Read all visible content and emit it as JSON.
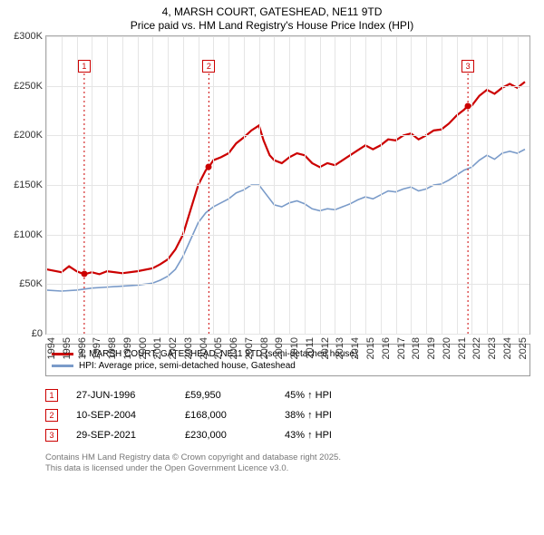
{
  "header": {
    "title": "4, MARSH COURT, GATESHEAD, NE11 9TD",
    "subtitle": "Price paid vs. HM Land Registry's House Price Index (HPI)"
  },
  "chart": {
    "x_min": 1994,
    "x_max": 2025.8,
    "y_min": 0,
    "y_max": 300000,
    "y_ticks": [
      0,
      50000,
      100000,
      150000,
      200000,
      250000,
      300000
    ],
    "y_tick_labels": [
      "£0",
      "£50K",
      "£100K",
      "£150K",
      "£200K",
      "£250K",
      "£300K"
    ],
    "x_ticks": [
      1994,
      1995,
      1996,
      1997,
      1998,
      1999,
      2000,
      2001,
      2002,
      2003,
      2004,
      2005,
      2006,
      2007,
      2008,
      2009,
      2010,
      2011,
      2012,
      2013,
      2014,
      2015,
      2016,
      2017,
      2018,
      2019,
      2020,
      2021,
      2022,
      2023,
      2024,
      2025
    ],
    "grid_color": "#e5e5e5",
    "background_color": "#ffffff",
    "series_main": {
      "color": "#cc0000",
      "width": 2.2,
      "data": [
        [
          1994.0,
          65000
        ],
        [
          1995.0,
          62000
        ],
        [
          1995.5,
          68000
        ],
        [
          1996.0,
          63000
        ],
        [
          1996.5,
          59950
        ],
        [
          1997.0,
          62000
        ],
        [
          1997.5,
          60000
        ],
        [
          1998.0,
          63000
        ],
        [
          1999.0,
          61000
        ],
        [
          2000.0,
          63000
        ],
        [
          2001.0,
          66000
        ],
        [
          2001.5,
          70000
        ],
        [
          2002.0,
          75000
        ],
        [
          2002.5,
          85000
        ],
        [
          2003.0,
          100000
        ],
        [
          2003.5,
          125000
        ],
        [
          2004.0,
          150000
        ],
        [
          2004.5,
          165000
        ],
        [
          2004.7,
          168000
        ],
        [
          2005.0,
          175000
        ],
        [
          2005.5,
          178000
        ],
        [
          2006.0,
          182000
        ],
        [
          2006.5,
          192000
        ],
        [
          2007.0,
          198000
        ],
        [
          2007.5,
          205000
        ],
        [
          2008.0,
          210000
        ],
        [
          2008.3,
          195000
        ],
        [
          2008.7,
          180000
        ],
        [
          2009.0,
          175000
        ],
        [
          2009.5,
          172000
        ],
        [
          2010.0,
          178000
        ],
        [
          2010.5,
          182000
        ],
        [
          2011.0,
          180000
        ],
        [
          2011.5,
          172000
        ],
        [
          2012.0,
          168000
        ],
        [
          2012.5,
          172000
        ],
        [
          2013.0,
          170000
        ],
        [
          2013.5,
          175000
        ],
        [
          2014.0,
          180000
        ],
        [
          2014.5,
          185000
        ],
        [
          2015.0,
          190000
        ],
        [
          2015.5,
          186000
        ],
        [
          2016.0,
          190000
        ],
        [
          2016.5,
          196000
        ],
        [
          2017.0,
          195000
        ],
        [
          2017.5,
          200000
        ],
        [
          2018.0,
          202000
        ],
        [
          2018.5,
          196000
        ],
        [
          2019.0,
          200000
        ],
        [
          2019.5,
          205000
        ],
        [
          2020.0,
          206000
        ],
        [
          2020.5,
          212000
        ],
        [
          2021.0,
          220000
        ],
        [
          2021.5,
          226000
        ],
        [
          2021.75,
          230000
        ],
        [
          2022.0,
          230000
        ],
        [
          2022.5,
          240000
        ],
        [
          2023.0,
          246000
        ],
        [
          2023.5,
          242000
        ],
        [
          2024.0,
          248000
        ],
        [
          2024.5,
          252000
        ],
        [
          2025.0,
          248000
        ],
        [
          2025.5,
          254000
        ]
      ]
    },
    "series_hpi": {
      "color": "#7a9bc9",
      "width": 1.6,
      "data": [
        [
          1994.0,
          44000
        ],
        [
          1995.0,
          43000
        ],
        [
          1996.0,
          44000
        ],
        [
          1997.0,
          46000
        ],
        [
          1998.0,
          47000
        ],
        [
          1999.0,
          48000
        ],
        [
          2000.0,
          49000
        ],
        [
          2001.0,
          51000
        ],
        [
          2001.5,
          54000
        ],
        [
          2002.0,
          58000
        ],
        [
          2002.5,
          65000
        ],
        [
          2003.0,
          78000
        ],
        [
          2003.5,
          95000
        ],
        [
          2004.0,
          112000
        ],
        [
          2004.5,
          122000
        ],
        [
          2005.0,
          128000
        ],
        [
          2005.5,
          132000
        ],
        [
          2006.0,
          136000
        ],
        [
          2006.5,
          142000
        ],
        [
          2007.0,
          145000
        ],
        [
          2007.5,
          150000
        ],
        [
          2008.0,
          150000
        ],
        [
          2008.5,
          140000
        ],
        [
          2009.0,
          130000
        ],
        [
          2009.5,
          128000
        ],
        [
          2010.0,
          132000
        ],
        [
          2010.5,
          134000
        ],
        [
          2011.0,
          131000
        ],
        [
          2011.5,
          126000
        ],
        [
          2012.0,
          124000
        ],
        [
          2012.5,
          126000
        ],
        [
          2013.0,
          125000
        ],
        [
          2013.5,
          128000
        ],
        [
          2014.0,
          131000
        ],
        [
          2014.5,
          135000
        ],
        [
          2015.0,
          138000
        ],
        [
          2015.5,
          136000
        ],
        [
          2016.0,
          140000
        ],
        [
          2016.5,
          144000
        ],
        [
          2017.0,
          143000
        ],
        [
          2017.5,
          146000
        ],
        [
          2018.0,
          148000
        ],
        [
          2018.5,
          144000
        ],
        [
          2019.0,
          146000
        ],
        [
          2019.5,
          150000
        ],
        [
          2020.0,
          151000
        ],
        [
          2020.5,
          155000
        ],
        [
          2021.0,
          160000
        ],
        [
          2021.5,
          165000
        ],
        [
          2022.0,
          168000
        ],
        [
          2022.5,
          175000
        ],
        [
          2023.0,
          180000
        ],
        [
          2023.5,
          176000
        ],
        [
          2024.0,
          182000
        ],
        [
          2024.5,
          184000
        ],
        [
          2025.0,
          182000
        ],
        [
          2025.5,
          186000
        ]
      ]
    },
    "sale_markers": [
      {
        "n": "1",
        "x": 1996.5,
        "y": 59950,
        "box_y": 270000
      },
      {
        "n": "2",
        "x": 2004.7,
        "y": 168000,
        "box_y": 270000
      },
      {
        "n": "3",
        "x": 2021.75,
        "y": 230000,
        "box_y": 270000
      }
    ],
    "marker_color": "#cc0000",
    "marker_dot_size": 7
  },
  "legend": {
    "items": [
      {
        "color": "#cc0000",
        "label": "4, MARSH COURT, GATESHEAD, NE11 9TD (semi-detached house)"
      },
      {
        "color": "#7a9bc9",
        "label": "HPI: Average price, semi-detached house, Gateshead"
      }
    ]
  },
  "sales": [
    {
      "n": "1",
      "date": "27-JUN-1996",
      "price": "£59,950",
      "delta": "45% ↑ HPI"
    },
    {
      "n": "2",
      "date": "10-SEP-2004",
      "price": "£168,000",
      "delta": "38% ↑ HPI"
    },
    {
      "n": "3",
      "date": "29-SEP-2021",
      "price": "£230,000",
      "delta": "43% ↑ HPI"
    }
  ],
  "sales_marker_color": "#cc0000",
  "footer": {
    "line1": "Contains HM Land Registry data © Crown copyright and database right 2025.",
    "line2": "This data is licensed under the Open Government Licence v3.0."
  }
}
